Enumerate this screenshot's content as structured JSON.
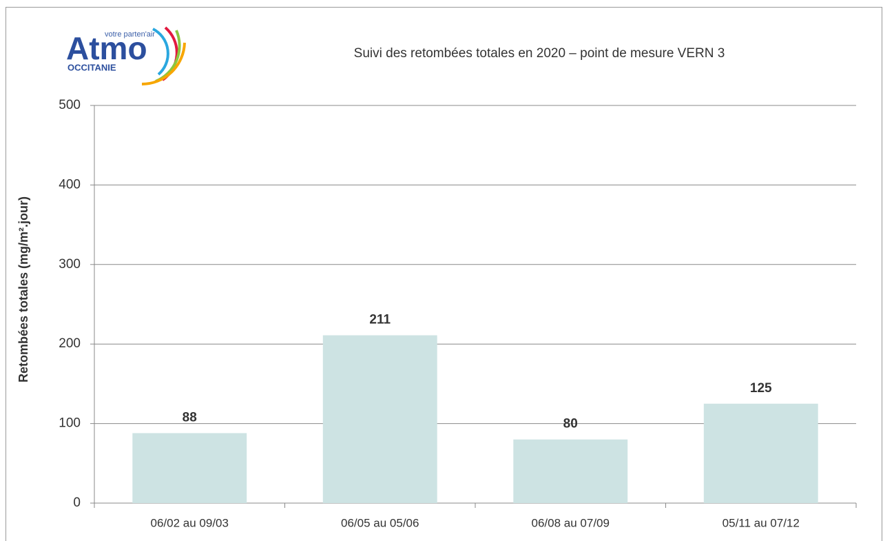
{
  "logo": {
    "name": "Atmo",
    "tagline": "votre parten'air",
    "region": "OCCITANIE"
  },
  "chart_data": {
    "type": "bar",
    "title": "Suivi des retombées totales en 2020 – point de mesure VERN 3",
    "ylabel": "Retombées totales (mg/m².jour)",
    "categories": [
      "06/02 au 09/03",
      "06/05 au 05/06",
      "06/08 au 07/09",
      "05/11 au 07/12"
    ],
    "values": [
      88,
      211,
      80,
      125
    ],
    "color": "#cde3e3",
    "ylim": [
      0,
      500
    ],
    "yticks": [
      0,
      100,
      200,
      300,
      400,
      500
    ],
    "grid": true
  }
}
